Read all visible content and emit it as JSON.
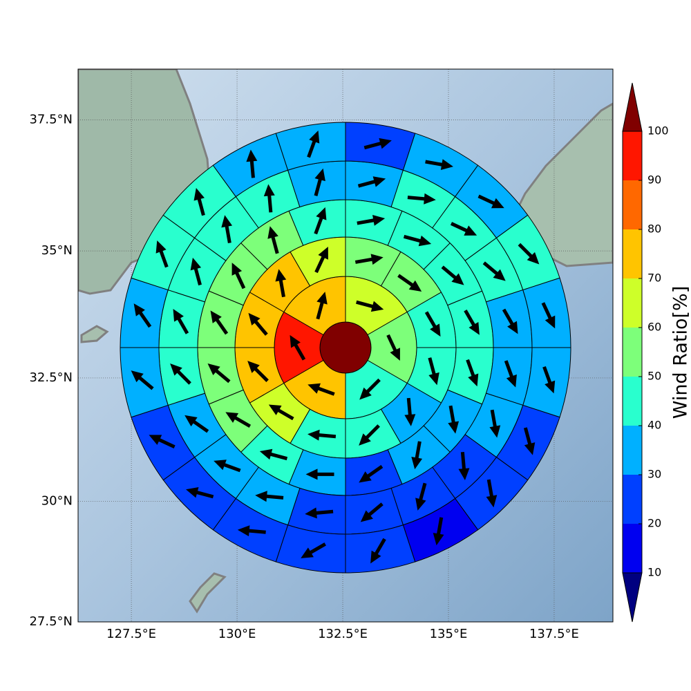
{
  "chart_data": {
    "type": "polar-sectors",
    "xlim": [
      126.24,
      138.89
    ],
    "ylim": [
      27.5,
      38.45
    ],
    "xticks": [
      {
        "value": 127.5,
        "label": "127.5°E"
      },
      {
        "value": 130,
        "label": "130°E"
      },
      {
        "value": 132.5,
        "label": "132.5°E"
      },
      {
        "value": 135,
        "label": "135°E"
      },
      {
        "value": 137.5,
        "label": "137.5°E"
      }
    ],
    "yticks": [
      {
        "value": 27.5,
        "label": "27.5°N"
      },
      {
        "value": 30,
        "label": "30°N"
      },
      {
        "value": 32.5,
        "label": "32.5°N"
      },
      {
        "value": 35,
        "label": "35°N"
      },
      {
        "value": 37.5,
        "label": "37.5°N"
      }
    ],
    "grid": true,
    "colorbar": {
      "label": "Wind Ratio[%]",
      "ticks": [
        10,
        20,
        30,
        40,
        50,
        60,
        70,
        80,
        90,
        100
      ],
      "colors": [
        "#000080",
        "#0000f0",
        "#0040ff",
        "#00b0ff",
        "#29ffce",
        "#7dff7a",
        "#ceff29",
        "#ffc400",
        "#ff6800",
        "#ff1600",
        "#800000"
      ]
    },
    "rings": [
      {
        "values": [
          105
        ]
      },
      {
        "values": [
          65,
          55,
          45,
          75,
          95,
          75
        ],
        "directions": [
          105,
          155,
          225,
          290,
          330,
          15
        ]
      },
      {
        "values": [
          55,
          55,
          45,
          45,
          35,
          45,
          45,
          65,
          75,
          75,
          75,
          65
        ],
        "directions": [
          80,
          125,
          150,
          165,
          175,
          225,
          275,
          300,
          315,
          320,
          350,
          25
        ]
      },
      {
        "values": [
          45,
          45,
          45,
          45,
          45,
          35,
          35,
          25,
          35,
          45,
          55,
          55,
          55,
          55,
          55,
          45
        ],
        "directions": [
          80,
          105,
          130,
          150,
          160,
          170,
          190,
          235,
          270,
          285,
          300,
          310,
          325,
          335,
          345,
          20
        ]
      },
      {
        "values": [
          35,
          45,
          45,
          45,
          35,
          35,
          35,
          25,
          25,
          25,
          25,
          35,
          35,
          35,
          45,
          45,
          45,
          45,
          45,
          35
        ],
        "directions": [
          75,
          95,
          115,
          130,
          150,
          160,
          170,
          175,
          195,
          230,
          265,
          275,
          290,
          305,
          315,
          330,
          345,
          350,
          355,
          15
        ]
      },
      {
        "values": [
          25,
          35,
          35,
          45,
          35,
          35,
          25,
          25,
          15,
          25,
          25,
          25,
          25,
          25,
          35,
          35,
          45,
          45,
          35,
          35
        ],
        "directions": [
          75,
          100,
          115,
          135,
          155,
          160,
          165,
          170,
          190,
          210,
          240,
          275,
          285,
          295,
          310,
          325,
          340,
          345,
          355,
          20
        ]
      }
    ]
  }
}
